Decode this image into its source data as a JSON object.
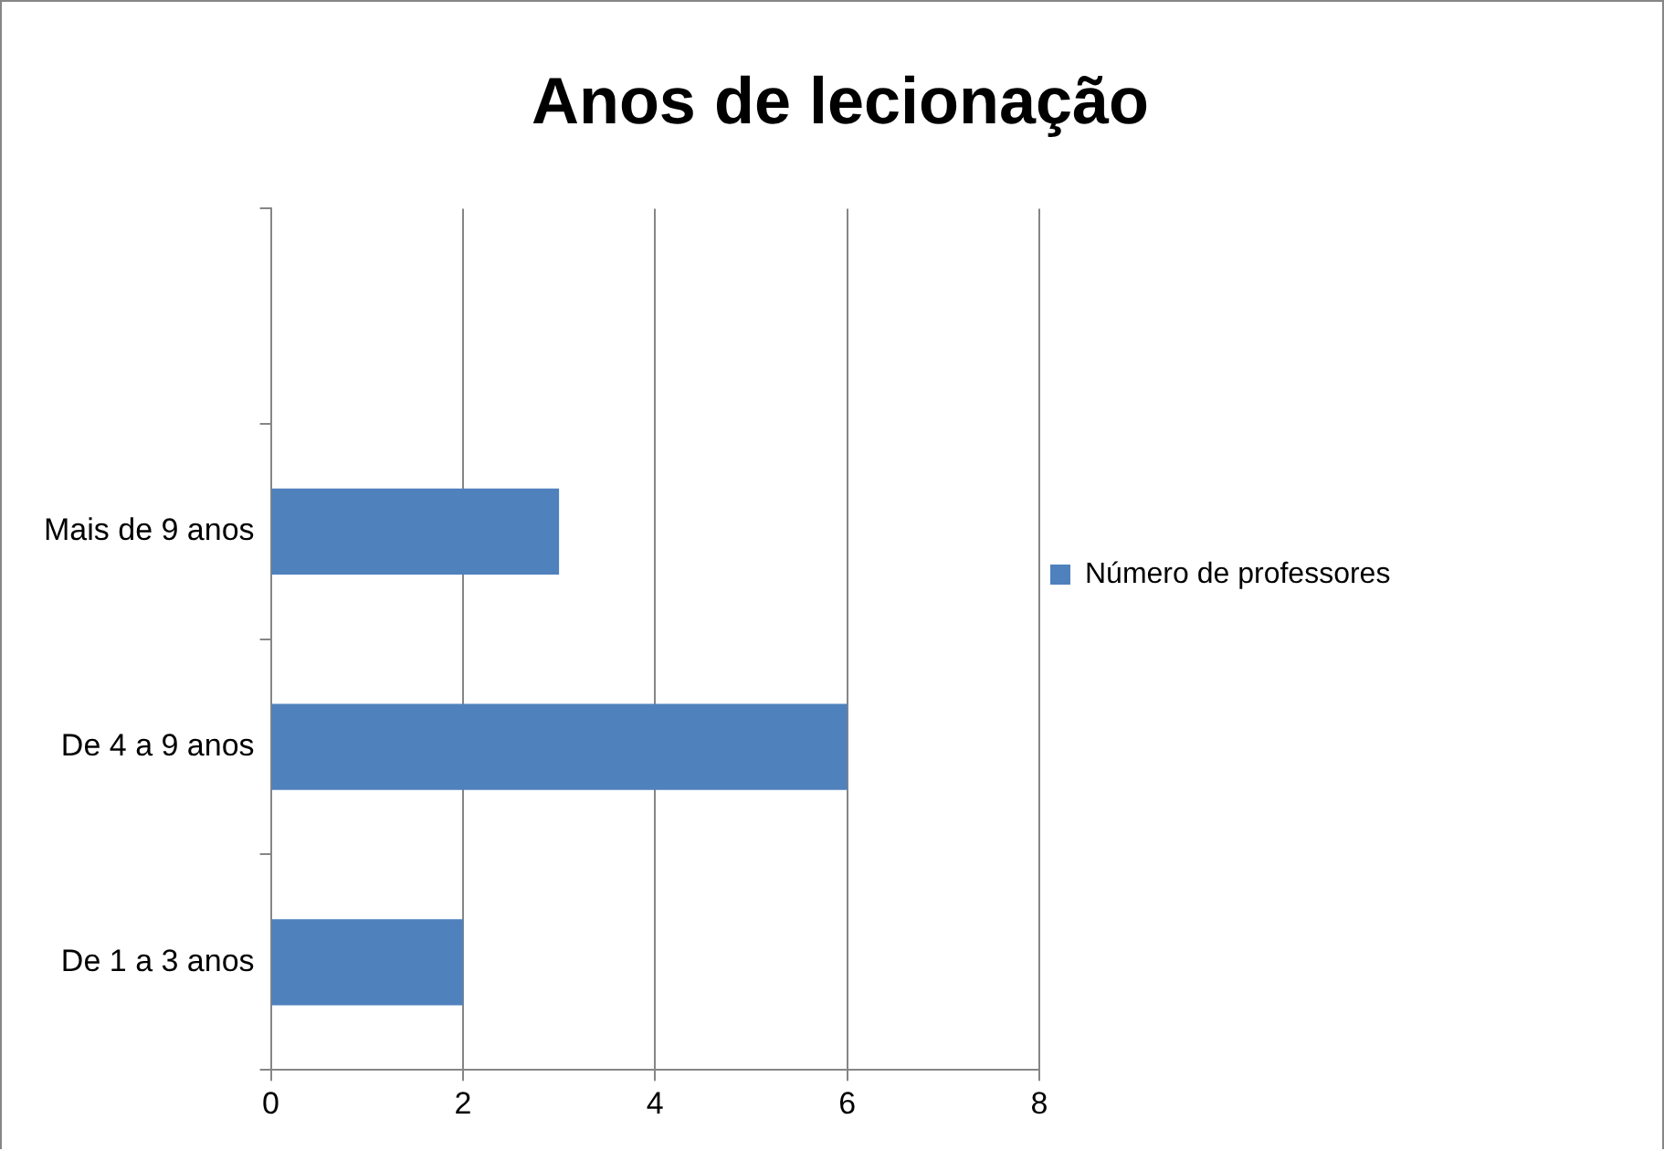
{
  "chart_data": {
    "type": "bar",
    "orientation": "horizontal",
    "title": "Anos de lecionação",
    "categories": [
      null,
      "Mais de 9 anos",
      "De 4 a 9 anos",
      "De 1 a 3 anos"
    ],
    "series": [
      {
        "name": "Número de professores",
        "color": "#4f81bd",
        "values": [
          null,
          3,
          6,
          2
        ]
      }
    ],
    "xlim": [
      0,
      8
    ],
    "xticks": [
      0,
      2,
      4,
      6,
      8
    ],
    "grid": "x",
    "legend": "right"
  }
}
